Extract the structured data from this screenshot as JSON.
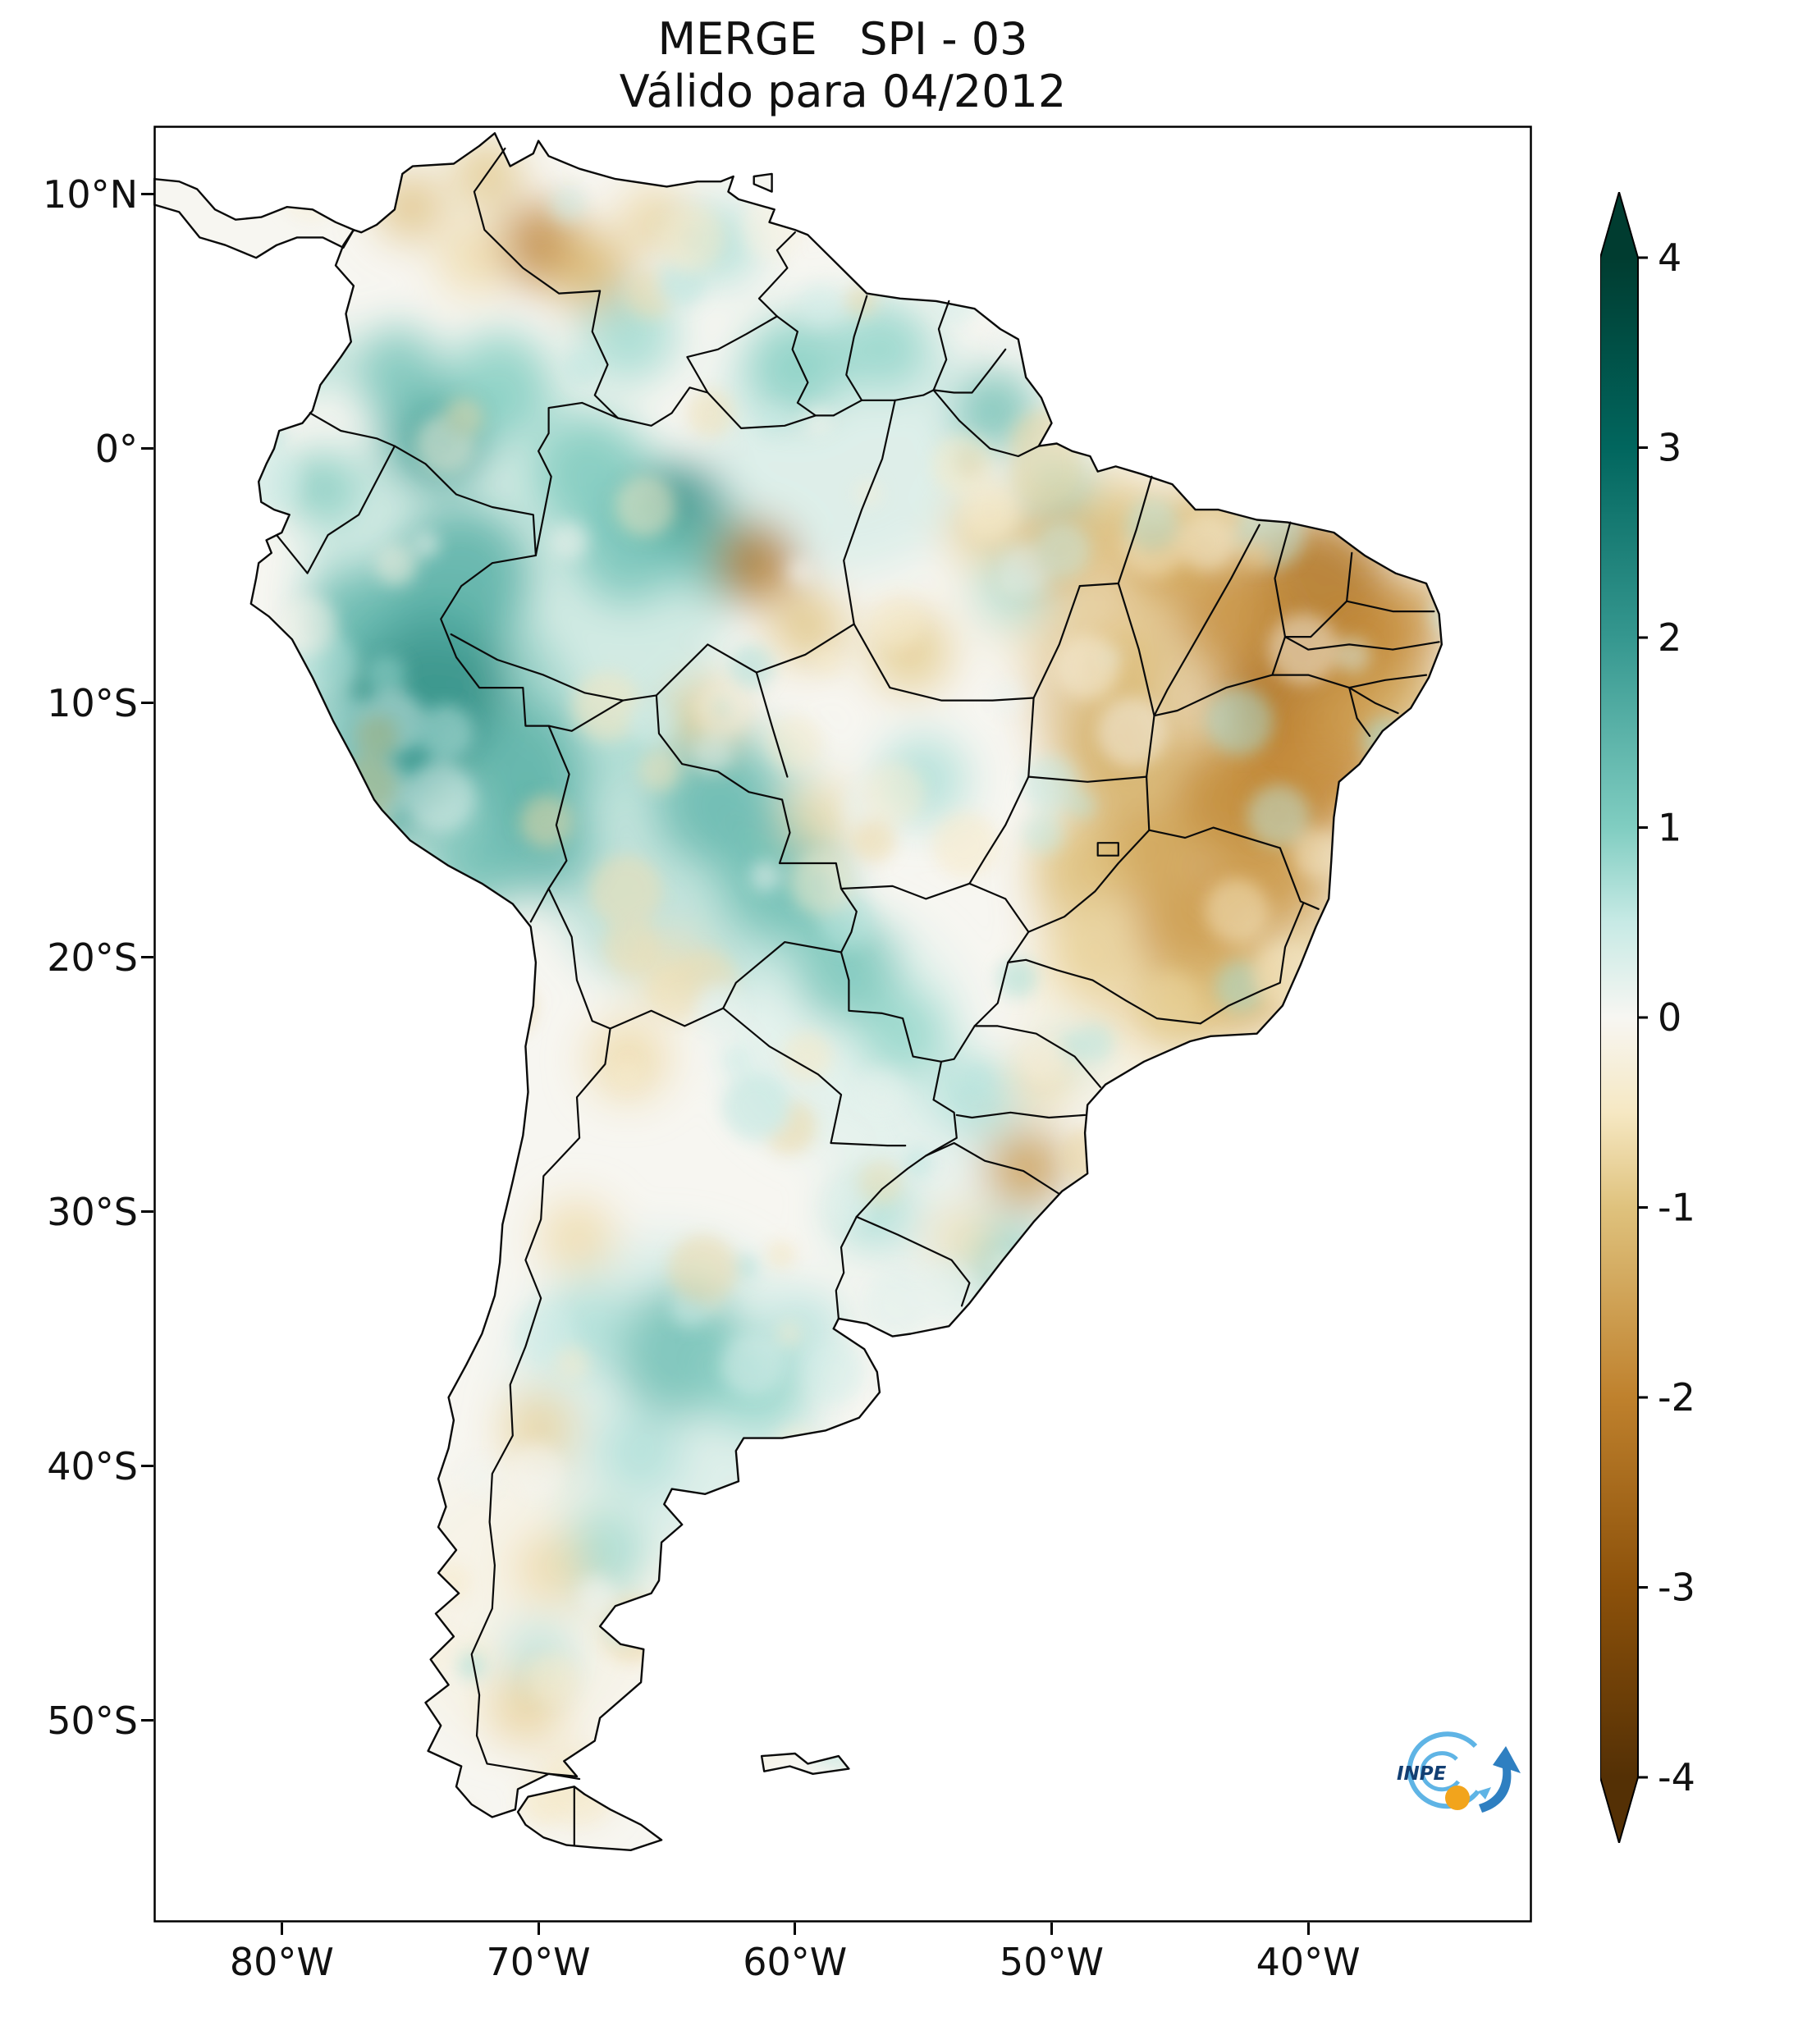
{
  "title": {
    "line1": "MERGE   SPI - 03",
    "line2": "Válido para 04/2012"
  },
  "axes": {
    "lat_ticks": [
      {
        "label": "10°N",
        "deg": 10
      },
      {
        "label": "0°",
        "deg": 0
      },
      {
        "label": "10°S",
        "deg": -10
      },
      {
        "label": "20°S",
        "deg": -20
      },
      {
        "label": "30°S",
        "deg": -30
      },
      {
        "label": "40°S",
        "deg": -40
      },
      {
        "label": "50°S",
        "deg": -50
      }
    ],
    "lon_ticks": [
      {
        "label": "80°W",
        "deg": -80
      },
      {
        "label": "70°W",
        "deg": -70
      },
      {
        "label": "60°W",
        "deg": -60
      },
      {
        "label": "50°W",
        "deg": -50
      },
      {
        "label": "40°W",
        "deg": -40
      }
    ]
  },
  "colorbar": {
    "ticks": [
      "4",
      "3",
      "2",
      "1",
      "0",
      "-1",
      "-2",
      "-3",
      "-4"
    ],
    "tick_values": [
      4,
      3,
      2,
      1,
      0,
      -1,
      -2,
      -3,
      -4
    ],
    "range": [
      -4,
      4
    ],
    "stops": [
      {
        "v": -4,
        "c": "#543005"
      },
      {
        "v": -3,
        "c": "#8c510a"
      },
      {
        "v": -2,
        "c": "#bf812d"
      },
      {
        "v": -1,
        "c": "#dfc27d"
      },
      {
        "v": -0.5,
        "c": "#f6e8c3"
      },
      {
        "v": 0,
        "c": "#f7f6f2"
      },
      {
        "v": 0.5,
        "c": "#c7eae5"
      },
      {
        "v": 1,
        "c": "#80cdc1"
      },
      {
        "v": 2,
        "c": "#35978f"
      },
      {
        "v": 3,
        "c": "#01665e"
      },
      {
        "v": 4,
        "c": "#003c30"
      }
    ]
  },
  "logo": {
    "text": "INPE",
    "navy": "#123f73",
    "light_blue": "#5fb4e5",
    "blue": "#2e7fc1",
    "orange": "#f2a41c"
  },
  "chart_data": {
    "type": "heatmap",
    "title": "MERGE   SPI - 03",
    "subtitle": "Válido para 04/2012",
    "product": "MERGE",
    "variable": "SPI-03",
    "valid_for": "04/2012",
    "region": "South America",
    "colorbar_range": [
      -4,
      4
    ],
    "colorbar_ticks": [
      4,
      3,
      2,
      1,
      0,
      -1,
      -2,
      -3,
      -4
    ],
    "x_axis": {
      "type": "longitude",
      "tick_labels": [
        "80°W",
        "70°W",
        "60°W",
        "50°W",
        "40°W"
      ]
    },
    "y_axis": {
      "type": "latitude",
      "tick_labels": [
        "10°N",
        "0°",
        "10°S",
        "20°S",
        "30°S",
        "40°S",
        "50°S"
      ]
    },
    "extent": {
      "lon": [
        -85,
        -31.3
      ],
      "lat": [
        -57.9,
        12.7
      ]
    },
    "anomalies_format": "[lon, lat, spi_value, radius_px, opacity(optional)]",
    "anomalies": [
      [
        -71,
        -6,
        0.8,
        260,
        0.4
      ],
      [
        -74,
        -11,
        1.3,
        170,
        0.5
      ],
      [
        -64,
        -16,
        1.0,
        180,
        0.45
      ],
      [
        -43.5,
        -9,
        -1.4,
        230,
        0.5
      ],
      [
        -44.5,
        -17.5,
        -1.2,
        190,
        0.5
      ],
      [
        -49,
        -4.5,
        -0.7,
        140,
        0.4
      ],
      [
        -58,
        -23,
        0.5,
        150,
        0.4
      ],
      [
        -65,
        -37,
        0.6,
        190,
        0.4
      ],
      [
        -58,
        0.5,
        0.6,
        170,
        0.4
      ],
      [
        -70.5,
        -45.5,
        -0.3,
        170,
        0.35
      ],
      [
        -53,
        -29.5,
        0.4,
        130,
        0.35
      ],
      [
        -47,
        -21.5,
        -0.5,
        130,
        0.35
      ],
      [
        -74.5,
        -9.5,
        2.3,
        105
      ],
      [
        -76,
        -12.5,
        2.0,
        80
      ],
      [
        -73,
        -5,
        1.6,
        85
      ],
      [
        -77,
        -6.5,
        1.4,
        60
      ],
      [
        -70.5,
        -12.5,
        1.5,
        75
      ],
      [
        -70,
        -15.5,
        1.5,
        65
      ],
      [
        -72.5,
        -16.5,
        1.3,
        55
      ],
      [
        -74,
        0.5,
        1.9,
        65
      ],
      [
        -75.5,
        3,
        1.2,
        55
      ],
      [
        -71.5,
        2.5,
        1.0,
        65
      ],
      [
        -68,
        -1,
        1.1,
        70
      ],
      [
        -64.5,
        -2.5,
        2.3,
        60
      ],
      [
        -62.8,
        -4.2,
        1.3,
        55
      ],
      [
        -66.5,
        -4,
        1.2,
        65
      ],
      [
        -60,
        3.2,
        1.0,
        60
      ],
      [
        -56.5,
        4,
        0.9,
        55
      ],
      [
        -52.2,
        1.5,
        1.3,
        50
      ],
      [
        -49.8,
        -1.6,
        0.9,
        40
      ],
      [
        -63,
        -14,
        1.4,
        75
      ],
      [
        -60.5,
        -17,
        1.3,
        75
      ],
      [
        -58,
        -20.5,
        1.2,
        65
      ],
      [
        -55.8,
        -23,
        0.9,
        55
      ],
      [
        -53,
        -25.5,
        0.7,
        50
      ],
      [
        -52,
        -31.8,
        0.9,
        50
      ],
      [
        -57,
        -30,
        0.7,
        50
      ],
      [
        -64.5,
        -35.5,
        1.3,
        80
      ],
      [
        -61.5,
        -36.8,
        0.9,
        60
      ],
      [
        -68,
        -34.5,
        0.7,
        50
      ],
      [
        -67.5,
        -43.5,
        0.8,
        55
      ],
      [
        -70,
        -47.5,
        0.6,
        45
      ],
      [
        -66,
        -39.5,
        0.7,
        50
      ],
      [
        -63,
        8,
        0.7,
        50
      ],
      [
        -66.5,
        4.5,
        0.8,
        60
      ],
      [
        -78.5,
        -1.5,
        1.1,
        45
      ],
      [
        -79,
        3.5,
        0.8,
        40
      ],
      [
        -55,
        -13,
        0.7,
        55
      ],
      [
        -51.5,
        -5.5,
        0.7,
        45
      ],
      [
        -59.5,
        -34.5,
        0.6,
        45
      ],
      [
        -49.5,
        -24,
        0.4,
        40
      ],
      [
        -39.5,
        -5.5,
        -2.3,
        85
      ],
      [
        -36.8,
        -7.5,
        -2.0,
        60
      ],
      [
        -41,
        -9.5,
        -2.4,
        75
      ],
      [
        -43,
        -6.5,
        -1.8,
        65
      ],
      [
        -45.5,
        -4.5,
        -1.5,
        55
      ],
      [
        -40,
        -12.5,
        -2.0,
        85
      ],
      [
        -43,
        -13.8,
        -1.9,
        70
      ],
      [
        -41.5,
        -16.8,
        -1.7,
        65
      ],
      [
        -38.5,
        -10.5,
        -1.6,
        55
      ],
      [
        -36.2,
        -9.8,
        -1.3,
        45
      ],
      [
        -44.5,
        -18.8,
        -1.7,
        70
      ],
      [
        -46.5,
        -16,
        -1.5,
        60
      ],
      [
        -47.5,
        -11.5,
        -1.3,
        60
      ],
      [
        -49,
        -16.5,
        -1.0,
        55
      ],
      [
        -45,
        -22,
        -1.0,
        50
      ],
      [
        -42.5,
        -21.5,
        -1.2,
        50
      ],
      [
        -48.5,
        -20,
        -0.8,
        50
      ],
      [
        -61.5,
        -4.5,
        -2.2,
        50
      ],
      [
        -59.5,
        -7,
        -1.0,
        45
      ],
      [
        -55.5,
        -8,
        -0.9,
        50
      ],
      [
        -49.8,
        -3.8,
        -1.3,
        50
      ],
      [
        -47.6,
        -2.6,
        -1.0,
        40
      ],
      [
        -52.8,
        -3.2,
        -0.8,
        40
      ],
      [
        -70,
        8,
        -2.1,
        50
      ],
      [
        -68,
        7,
        -1.2,
        50
      ],
      [
        -72.5,
        7.5,
        -0.7,
        45
      ],
      [
        -65.5,
        9,
        -0.8,
        40
      ],
      [
        -75,
        9.5,
        -1.1,
        40
      ],
      [
        -72,
        10.8,
        -1.0,
        40
      ],
      [
        -51,
        -28.3,
        -1.6,
        50
      ],
      [
        -53.5,
        -31,
        -0.6,
        40
      ],
      [
        -50.3,
        -24.8,
        -0.7,
        38
      ],
      [
        -66.5,
        -24,
        -0.7,
        50
      ],
      [
        -68.5,
        -31,
        -0.7,
        45
      ],
      [
        -70,
        -38.5,
        -0.8,
        45
      ],
      [
        -69.5,
        -44,
        -0.7,
        45
      ],
      [
        -70.5,
        -49.5,
        -0.8,
        45
      ],
      [
        -68.5,
        -52.5,
        -0.6,
        38
      ],
      [
        -63.5,
        -10.5,
        -0.9,
        42
      ],
      [
        -65,
        -20.5,
        -0.6,
        42
      ],
      [
        -59,
        -14.5,
        -0.7,
        42
      ],
      [
        -47,
        -8.5,
        -1.1,
        50
      ],
      [
        -44,
        -2.8,
        -1.0,
        42
      ],
      [
        -38,
        -8.3,
        -1.8,
        48
      ],
      [
        -35.8,
        -6.2,
        -1.6,
        38
      ]
    ]
  }
}
